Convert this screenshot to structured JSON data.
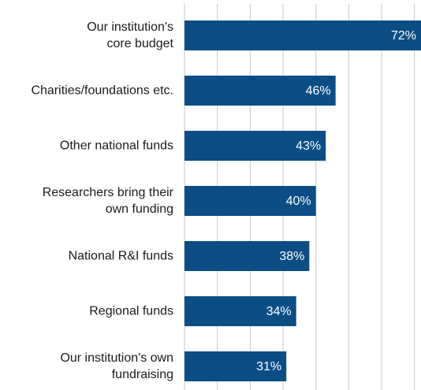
{
  "chart_data": {
    "type": "barh",
    "categories": [
      "Our institution's\ncore budget",
      "Charities/foundations etc.",
      "Other national funds",
      "Researchers bring their\nown funding",
      "National R&I funds",
      "Regional funds",
      "Our institution's own\nfundraising"
    ],
    "values": [
      72,
      46,
      43,
      40,
      38,
      34,
      31
    ],
    "value_labels": [
      "72%",
      "46%",
      "43%",
      "40%",
      "38%",
      "34%",
      "31%"
    ],
    "color": "#0b4d85",
    "xlim": [
      0,
      72
    ],
    "xticks": [
      0,
      10,
      20,
      30,
      40,
      50,
      60,
      70
    ],
    "grid": true
  }
}
